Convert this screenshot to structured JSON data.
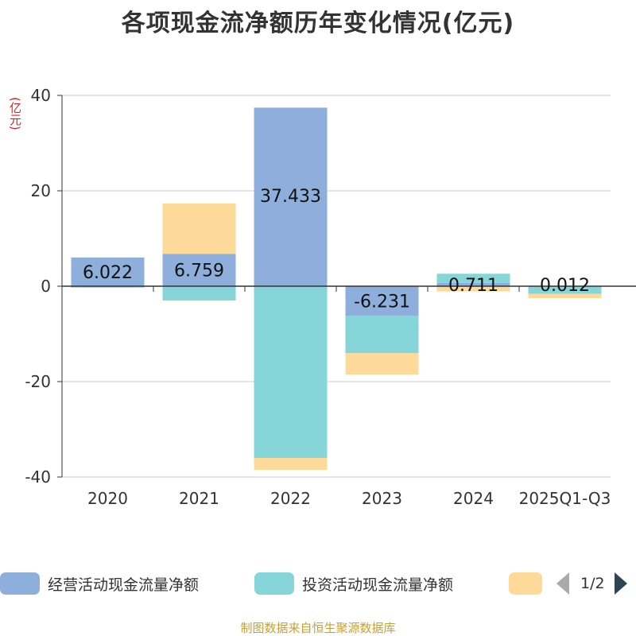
{
  "title": "各项现金流净额历年变化情况(亿元)",
  "unit_label": "(亿元)",
  "source": "制图数据来自恒生聚源数据库",
  "legend": {
    "page": "1/2"
  },
  "colors": {
    "operating": "#8eaedc",
    "investing": "#86d5d9",
    "financing": "#fdd99a",
    "axis": "#333333",
    "grid": "#cccccc"
  },
  "chart_data": {
    "type": "bar",
    "stacked": true,
    "categories": [
      "2020",
      "2021",
      "2022",
      "2023",
      "2024",
      "2025Q1-Q3"
    ],
    "ylim": [
      -40,
      40
    ],
    "yticks": [
      -40,
      -20,
      0,
      20,
      40
    ],
    "grid": true,
    "legend_position": "bottom",
    "series": [
      {
        "name": "经营活动现金流量净额",
        "values": [
          6.022,
          6.759,
          37.433,
          -6.231,
          0.711,
          0.012
        ],
        "labels": [
          "6.022",
          "6.759",
          "37.433",
          "-6.231",
          "0.711",
          "0.012"
        ]
      },
      {
        "name": "投资活动现金流量净额",
        "values": [
          -0.3,
          -3.0,
          -36.0,
          -7.8,
          1.9,
          -1.6
        ]
      },
      {
        "name": "",
        "values": [
          0.0,
          10.6,
          -2.5,
          -4.5,
          -1.1,
          -0.9
        ]
      }
    ]
  }
}
